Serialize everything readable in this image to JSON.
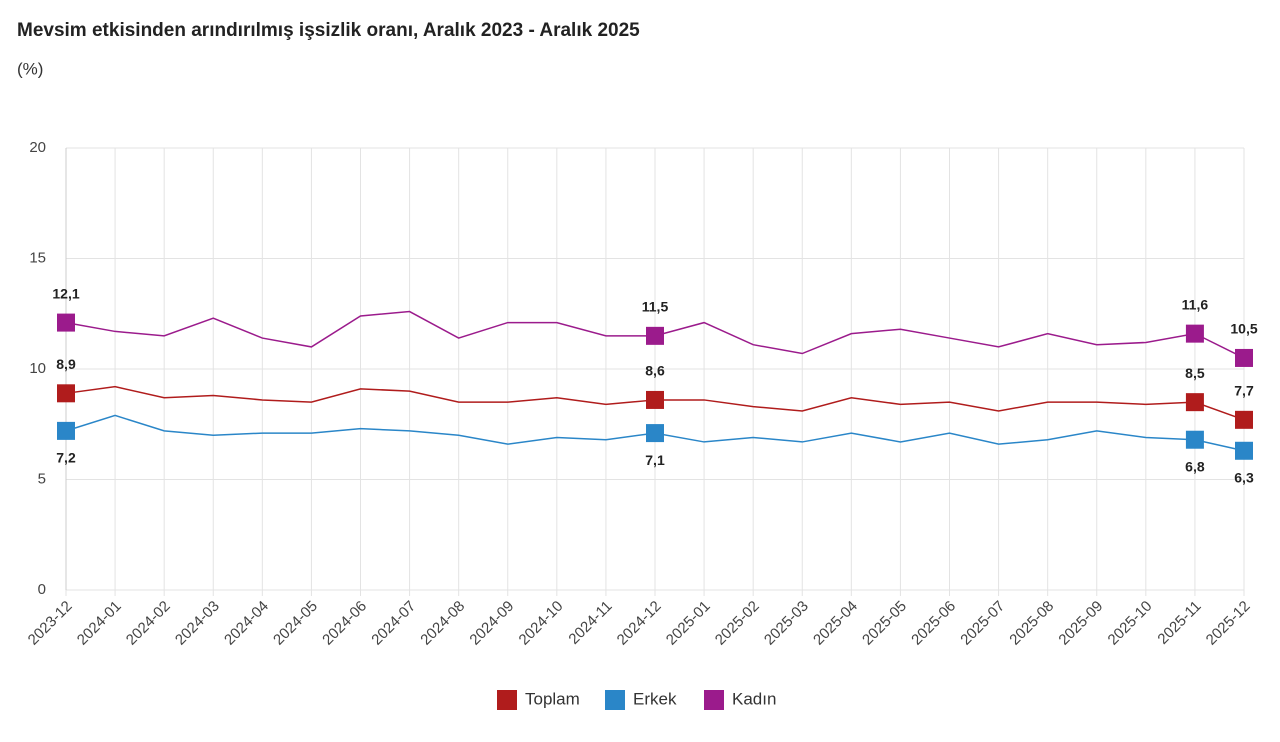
{
  "chart_data": {
    "type": "line",
    "title": "Mevsim etkisinden arındırılmış işsizlik oranı, Aralık 2023 - Aralık 2025",
    "subtitle": "(%)",
    "categories": [
      "2023-12",
      "2024-01",
      "2024-02",
      "2024-03",
      "2024-04",
      "2024-05",
      "2024-06",
      "2024-07",
      "2024-08",
      "2024-09",
      "2024-10",
      "2024-11",
      "2024-12",
      "2025-01",
      "2025-02",
      "2025-03",
      "2025-04",
      "2025-05",
      "2025-06",
      "2025-07",
      "2025-08",
      "2025-09",
      "2025-10",
      "2025-11",
      "2025-12"
    ],
    "series": [
      {
        "name": "Toplam",
        "color": "#b01c1c",
        "values": [
          8.9,
          9.2,
          8.7,
          8.8,
          8.6,
          8.5,
          9.1,
          9.0,
          8.5,
          8.5,
          8.7,
          8.4,
          8.6,
          8.6,
          8.3,
          8.1,
          8.7,
          8.4,
          8.5,
          8.1,
          8.5,
          8.5,
          8.4,
          8.5,
          7.7
        ],
        "value_labels": [
          "8,9",
          null,
          null,
          null,
          null,
          null,
          null,
          null,
          null,
          null,
          null,
          null,
          "8,6",
          null,
          null,
          null,
          null,
          null,
          null,
          null,
          null,
          null,
          null,
          "8,5",
          "7,7"
        ]
      },
      {
        "name": "Erkek",
        "color": "#2a86c8",
        "values": [
          7.2,
          7.9,
          7.2,
          7.0,
          7.1,
          7.1,
          7.3,
          7.2,
          7.0,
          6.6,
          6.9,
          6.8,
          7.1,
          6.7,
          6.9,
          6.7,
          7.1,
          6.7,
          7.1,
          6.6,
          6.8,
          7.2,
          6.9,
          6.8,
          6.3
        ],
        "value_labels": [
          "7,2",
          null,
          null,
          null,
          null,
          null,
          null,
          null,
          null,
          null,
          null,
          null,
          "7,1",
          null,
          null,
          null,
          null,
          null,
          null,
          null,
          null,
          null,
          null,
          "6,8",
          "6,3"
        ]
      },
      {
        "name": "Kadın",
        "color": "#9b1b8c",
        "values": [
          12.1,
          11.7,
          11.5,
          12.3,
          11.4,
          11.0,
          12.4,
          12.6,
          11.4,
          12.1,
          12.1,
          11.5,
          11.5,
          12.1,
          11.1,
          10.7,
          11.6,
          11.8,
          11.4,
          11.0,
          11.6,
          11.1,
          11.2,
          11.6,
          10.5
        ],
        "value_labels": [
          "12,1",
          null,
          null,
          null,
          null,
          null,
          null,
          null,
          null,
          null,
          null,
          null,
          "11,5",
          null,
          null,
          null,
          null,
          null,
          null,
          null,
          null,
          null,
          null,
          "11,6",
          "10,5"
        ]
      }
    ],
    "ylim": [
      0,
      20
    ],
    "yticks": [
      0,
      5,
      10,
      15,
      20
    ],
    "grid": true,
    "legend": "bottom"
  }
}
